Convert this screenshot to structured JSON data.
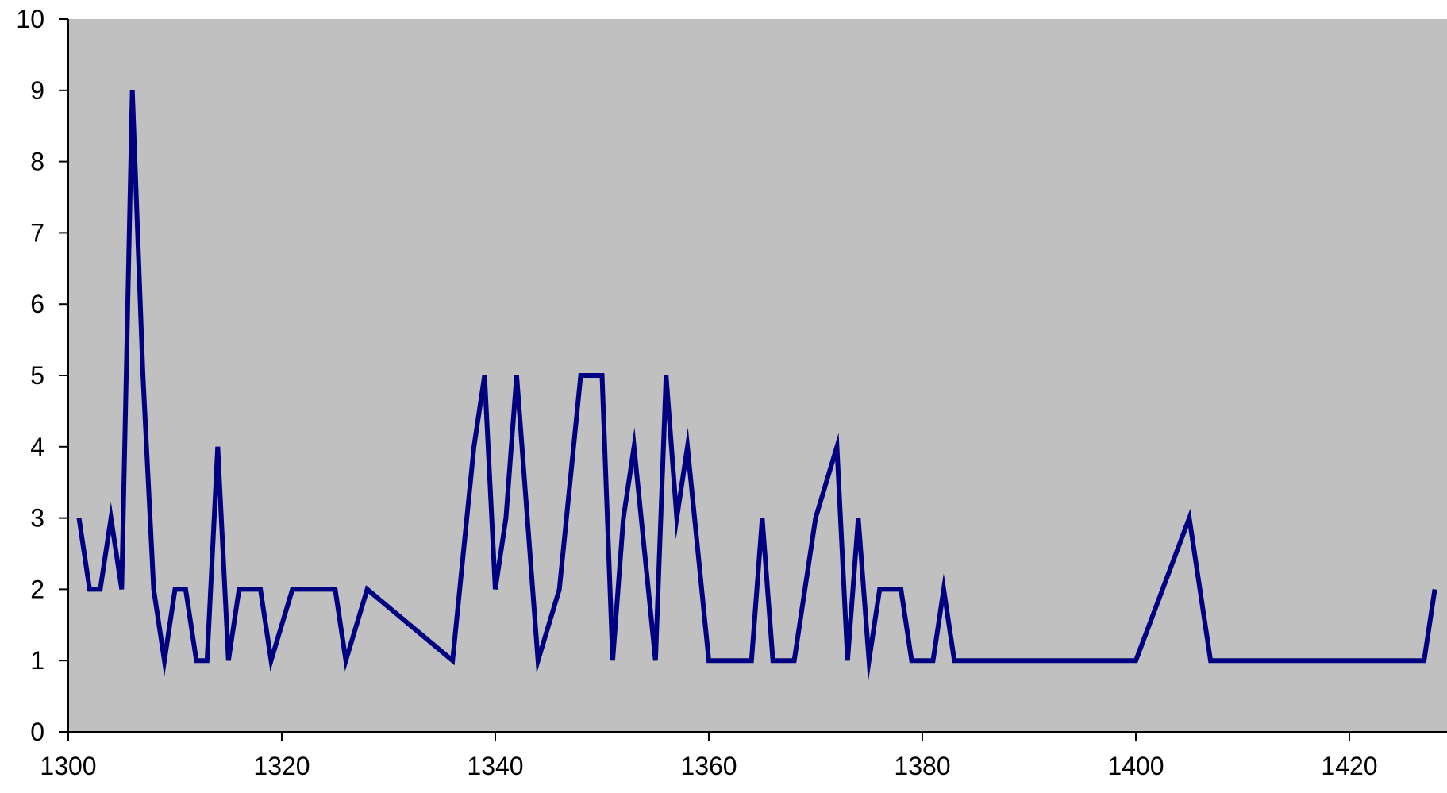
{
  "chart_data": {
    "type": "line",
    "title": "",
    "xlabel": "",
    "ylabel": "",
    "xlim": [
      1300,
      1430
    ],
    "ylim": [
      0,
      10
    ],
    "x_ticks": [
      1300,
      1320,
      1340,
      1360,
      1380,
      1400,
      1420
    ],
    "y_ticks": [
      0,
      1,
      2,
      3,
      4,
      5,
      6,
      7,
      8,
      9,
      10
    ],
    "grid": false,
    "legend": "none",
    "plot_background": "#C0C0C0",
    "series": [
      {
        "color": "#000080",
        "points": [
          [
            1301,
            3
          ],
          [
            1302,
            2
          ],
          [
            1303,
            2
          ],
          [
            1304,
            3
          ],
          [
            1305,
            2
          ],
          [
            1306,
            9
          ],
          [
            1307,
            5
          ],
          [
            1308,
            2
          ],
          [
            1309,
            1
          ],
          [
            1310,
            2
          ],
          [
            1311,
            2
          ],
          [
            1312,
            1
          ],
          [
            1313,
            1
          ],
          [
            1314,
            4
          ],
          [
            1315,
            1
          ],
          [
            1316,
            2
          ],
          [
            1318,
            2
          ],
          [
            1319,
            1
          ],
          [
            1321,
            2
          ],
          [
            1325,
            2
          ],
          [
            1326,
            1
          ],
          [
            1328,
            2
          ],
          [
            1336,
            1
          ],
          [
            1338,
            4
          ],
          [
            1339,
            5
          ],
          [
            1340,
            2
          ],
          [
            1341,
            3
          ],
          [
            1342,
            5
          ],
          [
            1344,
            1
          ],
          [
            1346,
            2
          ],
          [
            1348,
            5
          ],
          [
            1350,
            5
          ],
          [
            1351,
            1
          ],
          [
            1352,
            3
          ],
          [
            1353,
            4
          ],
          [
            1355,
            1
          ],
          [
            1356,
            5
          ],
          [
            1357,
            3
          ],
          [
            1358,
            4
          ],
          [
            1360,
            1
          ],
          [
            1364,
            1
          ],
          [
            1365,
            3
          ],
          [
            1366,
            1
          ],
          [
            1368,
            1
          ],
          [
            1370,
            3
          ],
          [
            1372,
            4
          ],
          [
            1373,
            1
          ],
          [
            1374,
            3
          ],
          [
            1375,
            1
          ],
          [
            1376,
            2
          ],
          [
            1378,
            2
          ],
          [
            1379,
            1
          ],
          [
            1381,
            1
          ],
          [
            1382,
            2
          ],
          [
            1383,
            1
          ],
          [
            1400,
            1
          ],
          [
            1405,
            3
          ],
          [
            1407,
            1
          ],
          [
            1427,
            1
          ],
          [
            1428,
            2
          ]
        ]
      }
    ]
  }
}
